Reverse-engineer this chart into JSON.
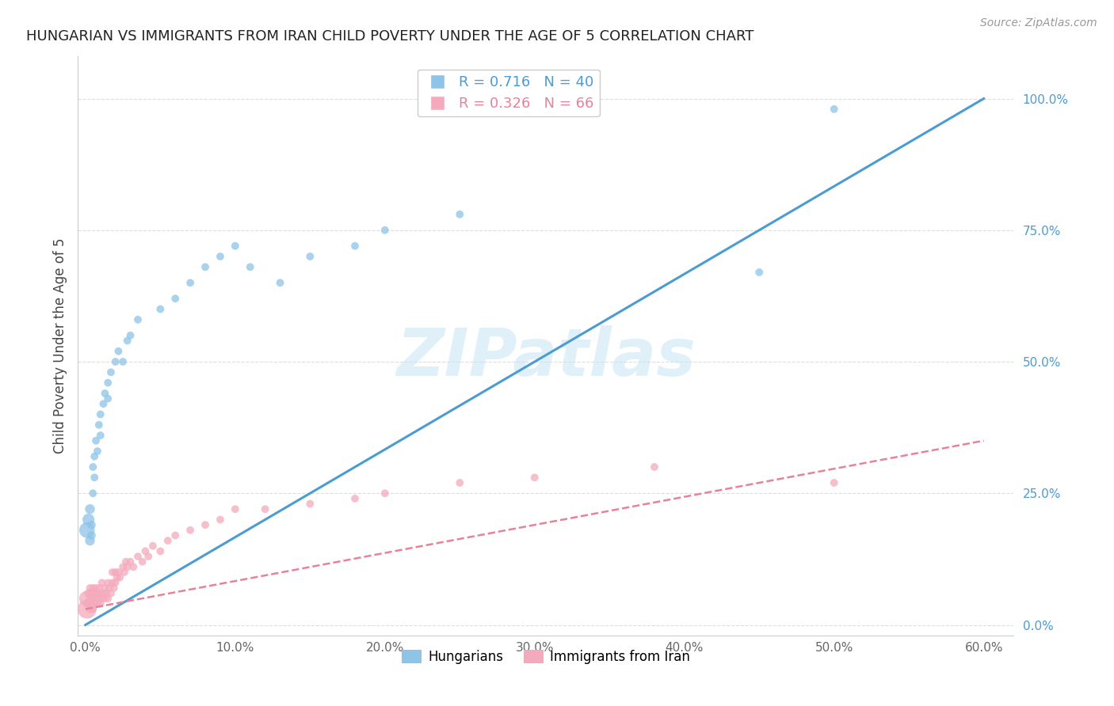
{
  "title": "HUNGARIAN VS IMMIGRANTS FROM IRAN CHILD POVERTY UNDER THE AGE OF 5 CORRELATION CHART",
  "source": "Source: ZipAtlas.com",
  "ylabel": "Child Poverty Under the Age of 5",
  "xlabel_ticks": [
    "0.0%",
    "10.0%",
    "20.0%",
    "30.0%",
    "40.0%",
    "50.0%",
    "60.0%"
  ],
  "xlabel_vals": [
    0.0,
    0.1,
    0.2,
    0.3,
    0.4,
    0.5,
    0.6
  ],
  "ylabel_ticks": [
    "0.0%",
    "25.0%",
    "50.0%",
    "75.0%",
    "100.0%"
  ],
  "ylabel_vals": [
    0.0,
    0.25,
    0.5,
    0.75,
    1.0
  ],
  "xlim": [
    -0.005,
    0.62
  ],
  "ylim": [
    -0.02,
    1.08
  ],
  "blue_color": "#8EC4E8",
  "pink_color": "#F4AABC",
  "blue_line_color": "#4B9CD3",
  "pink_line_color": "#E8829A",
  "legend_blue_R": "R = 0.716",
  "legend_blue_N": "N = 40",
  "legend_pink_R": "R = 0.326",
  "legend_pink_N": "N = 66",
  "watermark": "ZIPatlas",
  "blue_R": 0.716,
  "blue_N": 40,
  "pink_R": 0.326,
  "pink_N": 66,
  "blue_line_x0": 0.0,
  "blue_line_y0": 0.0,
  "blue_line_x1": 0.6,
  "blue_line_y1": 1.0,
  "pink_line_x0": 0.0,
  "pink_line_y0": 0.03,
  "pink_line_x1": 0.6,
  "pink_line_y1": 0.35,
  "blue_scatter_x": [
    0.001,
    0.002,
    0.003,
    0.003,
    0.004,
    0.004,
    0.005,
    0.005,
    0.006,
    0.006,
    0.007,
    0.008,
    0.009,
    0.01,
    0.01,
    0.012,
    0.013,
    0.015,
    0.015,
    0.017,
    0.02,
    0.022,
    0.025,
    0.028,
    0.03,
    0.035,
    0.05,
    0.06,
    0.07,
    0.08,
    0.09,
    0.1,
    0.11,
    0.13,
    0.15,
    0.18,
    0.2,
    0.25,
    0.45,
    0.5
  ],
  "blue_scatter_y": [
    0.18,
    0.2,
    0.16,
    0.22,
    0.19,
    0.17,
    0.3,
    0.25,
    0.28,
    0.32,
    0.35,
    0.33,
    0.38,
    0.4,
    0.36,
    0.42,
    0.44,
    0.43,
    0.46,
    0.48,
    0.5,
    0.52,
    0.5,
    0.54,
    0.55,
    0.58,
    0.6,
    0.62,
    0.65,
    0.68,
    0.7,
    0.72,
    0.68,
    0.65,
    0.7,
    0.72,
    0.75,
    0.78,
    0.67,
    0.98
  ],
  "blue_scatter_sizes": [
    200,
    120,
    80,
    80,
    60,
    60,
    50,
    50,
    50,
    50,
    50,
    50,
    50,
    50,
    50,
    50,
    50,
    50,
    50,
    50,
    50,
    50,
    50,
    50,
    50,
    50,
    50,
    50,
    50,
    50,
    50,
    50,
    50,
    50,
    50,
    50,
    50,
    50,
    50,
    50
  ],
  "pink_scatter_x": [
    0.001,
    0.001,
    0.002,
    0.002,
    0.003,
    0.003,
    0.003,
    0.004,
    0.004,
    0.005,
    0.005,
    0.005,
    0.006,
    0.006,
    0.007,
    0.007,
    0.008,
    0.008,
    0.009,
    0.009,
    0.01,
    0.01,
    0.011,
    0.011,
    0.012,
    0.013,
    0.013,
    0.014,
    0.015,
    0.015,
    0.016,
    0.017,
    0.018,
    0.018,
    0.019,
    0.02,
    0.02,
    0.021,
    0.022,
    0.023,
    0.025,
    0.026,
    0.027,
    0.028,
    0.03,
    0.032,
    0.035,
    0.038,
    0.04,
    0.042,
    0.045,
    0.05,
    0.055,
    0.06,
    0.07,
    0.08,
    0.09,
    0.1,
    0.12,
    0.15,
    0.18,
    0.2,
    0.25,
    0.3,
    0.38,
    0.5
  ],
  "pink_scatter_y": [
    0.03,
    0.05,
    0.04,
    0.06,
    0.03,
    0.05,
    0.07,
    0.04,
    0.06,
    0.03,
    0.05,
    0.07,
    0.04,
    0.06,
    0.05,
    0.07,
    0.04,
    0.06,
    0.05,
    0.07,
    0.04,
    0.06,
    0.05,
    0.08,
    0.06,
    0.05,
    0.07,
    0.06,
    0.05,
    0.08,
    0.07,
    0.06,
    0.08,
    0.1,
    0.07,
    0.08,
    0.1,
    0.09,
    0.1,
    0.09,
    0.11,
    0.1,
    0.12,
    0.11,
    0.12,
    0.11,
    0.13,
    0.12,
    0.14,
    0.13,
    0.15,
    0.14,
    0.16,
    0.17,
    0.18,
    0.19,
    0.2,
    0.22,
    0.22,
    0.23,
    0.24,
    0.25,
    0.27,
    0.28,
    0.3,
    0.27
  ],
  "pink_scatter_sizes": [
    300,
    200,
    80,
    60,
    60,
    50,
    50,
    50,
    50,
    50,
    50,
    50,
    50,
    50,
    50,
    50,
    50,
    50,
    50,
    50,
    50,
    50,
    50,
    50,
    50,
    50,
    50,
    50,
    50,
    50,
    50,
    50,
    50,
    50,
    50,
    50,
    50,
    50,
    50,
    50,
    50,
    50,
    50,
    50,
    50,
    50,
    50,
    50,
    50,
    50,
    50,
    50,
    50,
    50,
    50,
    50,
    50,
    50,
    50,
    50,
    50,
    50,
    50,
    50,
    50,
    50
  ]
}
